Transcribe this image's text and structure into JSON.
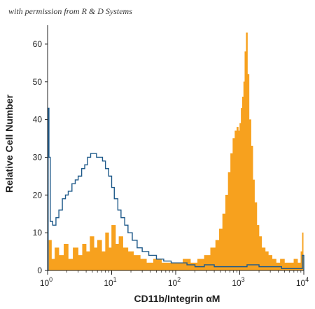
{
  "watermark": "with permission from R & D Systems",
  "chart_data": {
    "type": "histogram",
    "title": "",
    "xlabel": "CD11b/Integrin αM",
    "ylabel": "Relative Cell Number",
    "x_scale": "log",
    "xlim": [
      1,
      10000
    ],
    "ylim": [
      0,
      65
    ],
    "x_ticks": [
      {
        "value": 1,
        "base": "10",
        "exp": "0"
      },
      {
        "value": 10,
        "base": "10",
        "exp": "1"
      },
      {
        "value": 100,
        "base": "10",
        "exp": "2"
      },
      {
        "value": 1000,
        "base": "10",
        "exp": "3"
      },
      {
        "value": 10000,
        "base": "10",
        "exp": "4"
      }
    ],
    "y_ticks": [
      0,
      10,
      20,
      30,
      40,
      50,
      60
    ],
    "grid": false,
    "series": [
      {
        "style": "filled",
        "color": "#f7a11e",
        "x": [
          1.0,
          1.05,
          1.15,
          1.3,
          1.5,
          1.8,
          2.1,
          2.5,
          3.0,
          3.5,
          4.0,
          4.6,
          5.3,
          6.0,
          7.0,
          8.0,
          9.0,
          10.0,
          11.5,
          13.0,
          15.0,
          18.0,
          22.0,
          28.0,
          35.0,
          45.0,
          60.0,
          80.0,
          100.0,
          130.0,
          170.0,
          220.0,
          280.0,
          350.0,
          420.0,
          480.0,
          540.0,
          600.0,
          660.0,
          720.0,
          780.0,
          840.0,
          900.0,
          950.0,
          1000.0,
          1050.0,
          1100.0,
          1150.0,
          1200.0,
          1260.0,
          1320.0,
          1400.0,
          1500.0,
          1600.0,
          1700.0,
          1850.0,
          2000.0,
          2200.0,
          2500.0,
          2800.0,
          3200.0,
          3700.0,
          4300.0,
          5000.0,
          6000.0,
          7000.0,
          8000.0,
          9000.0,
          9500.0,
          9800.0,
          10000.0
        ],
        "y": [
          0,
          8,
          3,
          6,
          4,
          7,
          3,
          6,
          4,
          7,
          5,
          9,
          6,
          8,
          5,
          10,
          6,
          12,
          7,
          9,
          6,
          5,
          4,
          3,
          2,
          3,
          2,
          2,
          2,
          3,
          2,
          3,
          4,
          6,
          8,
          11,
          15,
          20,
          26,
          31,
          35,
          37,
          38,
          37,
          39,
          43,
          46,
          50,
          58,
          63,
          52,
          40,
          33,
          24,
          18,
          12,
          9,
          6,
          5,
          4,
          3,
          2,
          3,
          2,
          2,
          3,
          2,
          5,
          10,
          4,
          0
        ]
      },
      {
        "style": "outline",
        "color": "#1f5a8a",
        "x": [
          1.0,
          1.02,
          1.05,
          1.1,
          1.2,
          1.35,
          1.5,
          1.7,
          1.9,
          2.1,
          2.4,
          2.7,
          3.0,
          3.4,
          3.8,
          4.2,
          4.7,
          5.2,
          5.8,
          6.5,
          7.2,
          8.0,
          9.0,
          10.0,
          11.0,
          12.5,
          14.0,
          16.0,
          18.0,
          21.0,
          25.0,
          30.0,
          38.0,
          50.0,
          65.0,
          85.0,
          110.0,
          150.0,
          200.0,
          280.0,
          400.0,
          600.0,
          900.0,
          1300.0,
          2000.0,
          3000.0,
          4500.0,
          7000.0,
          9500.0,
          10000.0
        ],
        "y": [
          0,
          43,
          30,
          13,
          12,
          14,
          16,
          19,
          20,
          21,
          23,
          24,
          25,
          27,
          28,
          30,
          31,
          31,
          30,
          30,
          29,
          27,
          25,
          22,
          19,
          16,
          14,
          12,
          10,
          8,
          6,
          5,
          4,
          3,
          2.5,
          2,
          2,
          1.5,
          1,
          1.5,
          1,
          1,
          1,
          1.5,
          1,
          1,
          0.5,
          0.5,
          4,
          0
        ]
      }
    ]
  }
}
